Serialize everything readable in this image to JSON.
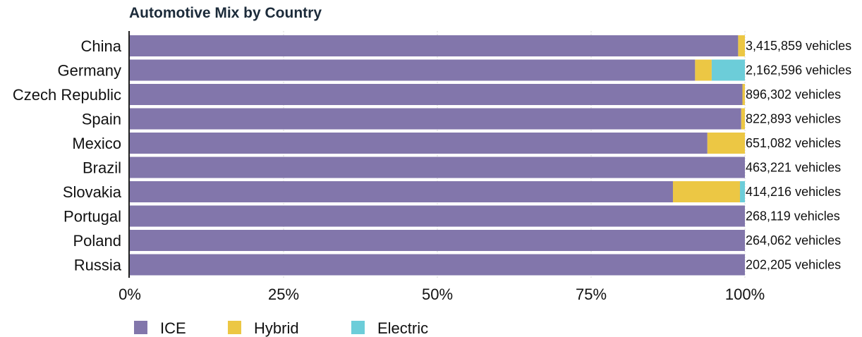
{
  "chart_data": {
    "type": "bar",
    "orientation": "horizontal",
    "stacked": true,
    "percent": true,
    "title": "Automotive Mix by Country",
    "categories": [
      "China",
      "Germany",
      "Czech Republic",
      "Spain",
      "Mexico",
      "Brazil",
      "Slovakia",
      "Portugal",
      "Poland",
      "Russia"
    ],
    "series": [
      {
        "name": "ICE",
        "color": "#8276ab",
        "values": [
          98.9,
          91.9,
          99.6,
          99.4,
          93.9,
          100,
          88.3,
          100,
          100,
          100
        ]
      },
      {
        "name": "Hybrid",
        "color": "#ecc744",
        "values": [
          1.1,
          2.7,
          0.4,
          0.6,
          6.1,
          0,
          10.9,
          0,
          0,
          0
        ]
      },
      {
        "name": "Electric",
        "color": "#6ccdd9",
        "values": [
          0,
          5.4,
          0,
          0,
          0,
          0,
          0.8,
          0,
          0,
          0
        ]
      }
    ],
    "totals": [
      "3,415,859 vehicles",
      "2,162,596 vehicles",
      "896,302 vehicles",
      "822,893 vehicles",
      "651,082 vehicles",
      "463,221 vehicles",
      "414,216 vehicles",
      "268,119 vehicles",
      "264,062 vehicles",
      "202,205 vehicles"
    ],
    "x_ticks": [
      "0%",
      "25%",
      "50%",
      "75%",
      "100%"
    ],
    "xlim": [
      0,
      100
    ],
    "grid": true,
    "legend": "bottom-left"
  }
}
